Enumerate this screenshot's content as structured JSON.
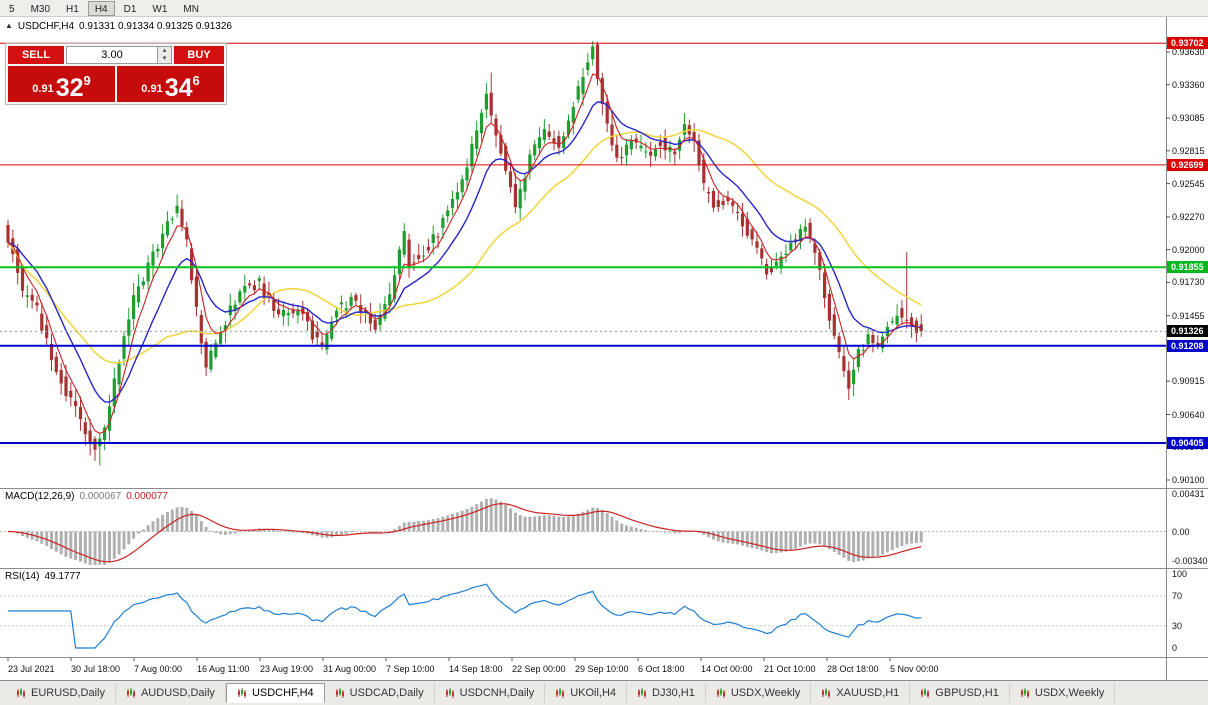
{
  "toolbar": {
    "buttons": [
      "5",
      "M30",
      "H1",
      "H4",
      "D1",
      "W1",
      "MN"
    ],
    "active": "H4"
  },
  "chart_header": {
    "symbol_title": "USDCHF,H4",
    "ohlc": "0.91331 0.91334 0.91325 0.91326"
  },
  "trade_panel": {
    "sell_label": "SELL",
    "buy_label": "BUY",
    "volume": "3.00",
    "sell_price_small": "0.91",
    "sell_price_big": "32",
    "sell_price_sup": "9",
    "buy_price_small": "0.91",
    "buy_price_big": "34",
    "buy_price_sup": "6"
  },
  "price_scale": {
    "ticks": [
      "0.93630",
      "0.93360",
      "0.93085",
      "0.92815",
      "0.92545",
      "0.92270",
      "0.92000",
      "0.91730",
      "0.91455",
      "0.91185",
      "0.90915",
      "0.90640",
      "0.90370",
      "0.90100"
    ],
    "tags": [
      {
        "label": "0.93702",
        "color": "#dd0000"
      },
      {
        "label": "0.92699",
        "color": "#dd0000"
      },
      {
        "label": "0.91855",
        "color": "#00b71e"
      },
      {
        "label": "0.91326",
        "color": "#000000"
      },
      {
        "label": "0.91208",
        "color": "#0000cc"
      },
      {
        "label": "0.90405",
        "color": "#0000cc"
      }
    ]
  },
  "indicators": {
    "macd": {
      "name": "MACD(12,26,9)",
      "value_main": "0.000067",
      "value_signal": "0.000077",
      "scale": [
        "0.00431",
        "0.00",
        "-0.00340"
      ],
      "scale_values": [
        0.00431,
        0,
        -0.0034
      ]
    },
    "rsi": {
      "name": "RSI(14)",
      "value": "49.1777",
      "scale": [
        "100",
        "70",
        "30",
        "0"
      ],
      "scale_values": [
        100,
        70,
        30,
        0
      ]
    }
  },
  "time_axis": {
    "labels": [
      "23 Jul 2021",
      "30 Jul 18:00",
      "7 Aug 00:00",
      "16 Aug 11:00",
      "23 Aug 19:00",
      "31 Aug 00:00",
      "7 Sep 10:00",
      "14 Sep 18:00",
      "22 Sep 00:00",
      "29 Sep 10:00",
      "6 Oct 18:00",
      "14 Oct 00:00",
      "21 Oct 10:00",
      "28 Oct 18:00",
      "5 Nov 00:00"
    ]
  },
  "tabs": {
    "active_index": 2,
    "items": [
      "EURUSD,Daily",
      "AUDUSD,Daily",
      "USDCHF,H4",
      "USDCAD,Daily",
      "USDCNH,Daily",
      "UKOil,H4",
      "DJ30,H1",
      "USDX,Weekly",
      "XAUUSD,H1",
      "GBPUSD,H1",
      "USDX,Weekly"
    ]
  },
  "chart_data": {
    "type": "candlestick",
    "symbol": "USDCHF",
    "timeframe": "H4",
    "ohlc_display": {
      "open": "0.91331",
      "high": "0.91334",
      "low": "0.91325",
      "close": "0.91326"
    },
    "current_price": 0.91326,
    "date_range": "23 Jul 2021 - 5 Nov 2021",
    "y_axis": {
      "min": 0.901,
      "max": 0.9363
    },
    "num_candles": 190,
    "levels": [
      {
        "price": 0.93702,
        "color": "#dd0000",
        "width": 1
      },
      {
        "price": 0.92699,
        "color": "#dd0000",
        "width": 1
      },
      {
        "price": 0.91855,
        "color": "#00c21e",
        "width": 2
      },
      {
        "price": 0.91208,
        "color": "#0000cc",
        "width": 2
      },
      {
        "price": 0.90405,
        "color": "#0000cc",
        "width": 2
      }
    ],
    "price_path": [
      [
        0,
        0.9218
      ],
      [
        2,
        0.92
      ],
      [
        4,
        0.9165
      ],
      [
        7,
        0.915
      ],
      [
        10,
        0.9112
      ],
      [
        13,
        0.9082
      ],
      [
        16,
        0.906
      ],
      [
        19,
        0.9035
      ],
      [
        21,
        0.9052
      ],
      [
        24,
        0.911
      ],
      [
        27,
        0.916
      ],
      [
        30,
        0.9185
      ],
      [
        33,
        0.9215
      ],
      [
        36,
        0.9235
      ],
      [
        38,
        0.9205
      ],
      [
        40,
        0.915
      ],
      [
        42,
        0.91
      ],
      [
        44,
        0.9125
      ],
      [
        47,
        0.915
      ],
      [
        50,
        0.9168
      ],
      [
        53,
        0.9172
      ],
      [
        56,
        0.915
      ],
      [
        59,
        0.9148
      ],
      [
        62,
        0.915
      ],
      [
        64,
        0.9128
      ],
      [
        66,
        0.912
      ],
      [
        69,
        0.9152
      ],
      [
        72,
        0.9158
      ],
      [
        75,
        0.9145
      ],
      [
        77,
        0.9138
      ],
      [
        80,
        0.9162
      ],
      [
        82,
        0.92
      ],
      [
        83,
        0.9212
      ],
      [
        84,
        0.9188
      ],
      [
        87,
        0.9198
      ],
      [
        90,
        0.9215
      ],
      [
        93,
        0.924
      ],
      [
        95,
        0.9258
      ],
      [
        98,
        0.9298
      ],
      [
        100,
        0.9328
      ],
      [
        102,
        0.9295
      ],
      [
        104,
        0.9268
      ],
      [
        106,
        0.9238
      ],
      [
        109,
        0.9275
      ],
      [
        112,
        0.9298
      ],
      [
        115,
        0.9285
      ],
      [
        117,
        0.9308
      ],
      [
        120,
        0.9345
      ],
      [
        122,
        0.9366
      ],
      [
        123,
        0.934
      ],
      [
        125,
        0.9305
      ],
      [
        127,
        0.9272
      ],
      [
        130,
        0.929
      ],
      [
        133,
        0.9278
      ],
      [
        136,
        0.9288
      ],
      [
        139,
        0.928
      ],
      [
        141,
        0.9302
      ],
      [
        143,
        0.9288
      ],
      [
        145,
        0.9252
      ],
      [
        147,
        0.9238
      ],
      [
        150,
        0.9242
      ],
      [
        153,
        0.9222
      ],
      [
        156,
        0.92
      ],
      [
        158,
        0.9182
      ],
      [
        161,
        0.9192
      ],
      [
        164,
        0.921
      ],
      [
        166,
        0.922
      ],
      [
        169,
        0.9182
      ],
      [
        171,
        0.9145
      ],
      [
        173,
        0.9112
      ],
      [
        175,
        0.9088
      ],
      [
        177,
        0.9115
      ],
      [
        179,
        0.9128
      ],
      [
        181,
        0.912
      ],
      [
        183,
        0.9136
      ],
      [
        185,
        0.9148
      ],
      [
        187,
        0.914
      ],
      [
        190,
        0.91326
      ]
    ],
    "long_wicks": [
      {
        "i": 19,
        "low": 0.9022
      },
      {
        "i": 100,
        "high": 0.9346
      },
      {
        "i": 122,
        "high": 0.9371
      },
      {
        "i": 186,
        "high": 0.9198
      }
    ],
    "moving_averages": [
      {
        "name": "slow",
        "period": 34,
        "color": "#f2d43c"
      },
      {
        "name": "mid",
        "period": 13,
        "color": "#2626cc"
      },
      {
        "name": "fast",
        "period": 5,
        "color": "#cc2222"
      }
    ],
    "indicators": {
      "macd": {
        "fast": 12,
        "slow": 26,
        "signal": 9,
        "current_main": 6.7e-05,
        "current_signal": 7.7e-05,
        "scale_max": 0.00431,
        "scale_min": -0.0034
      },
      "rsi": {
        "period": 14,
        "current": 49.1777,
        "levels": [
          70,
          30
        ]
      }
    },
    "colors": {
      "candle_up": "#1f9d2f",
      "candle_down": "#a63232",
      "ma_fast": "#cc2222",
      "ma_mid": "#2626cc",
      "ma_slow": "#f2d43c",
      "macd_hist": "#b0b0b0",
      "macd_signal": "#cc2222",
      "rsi_line": "#1f7fd4"
    }
  }
}
